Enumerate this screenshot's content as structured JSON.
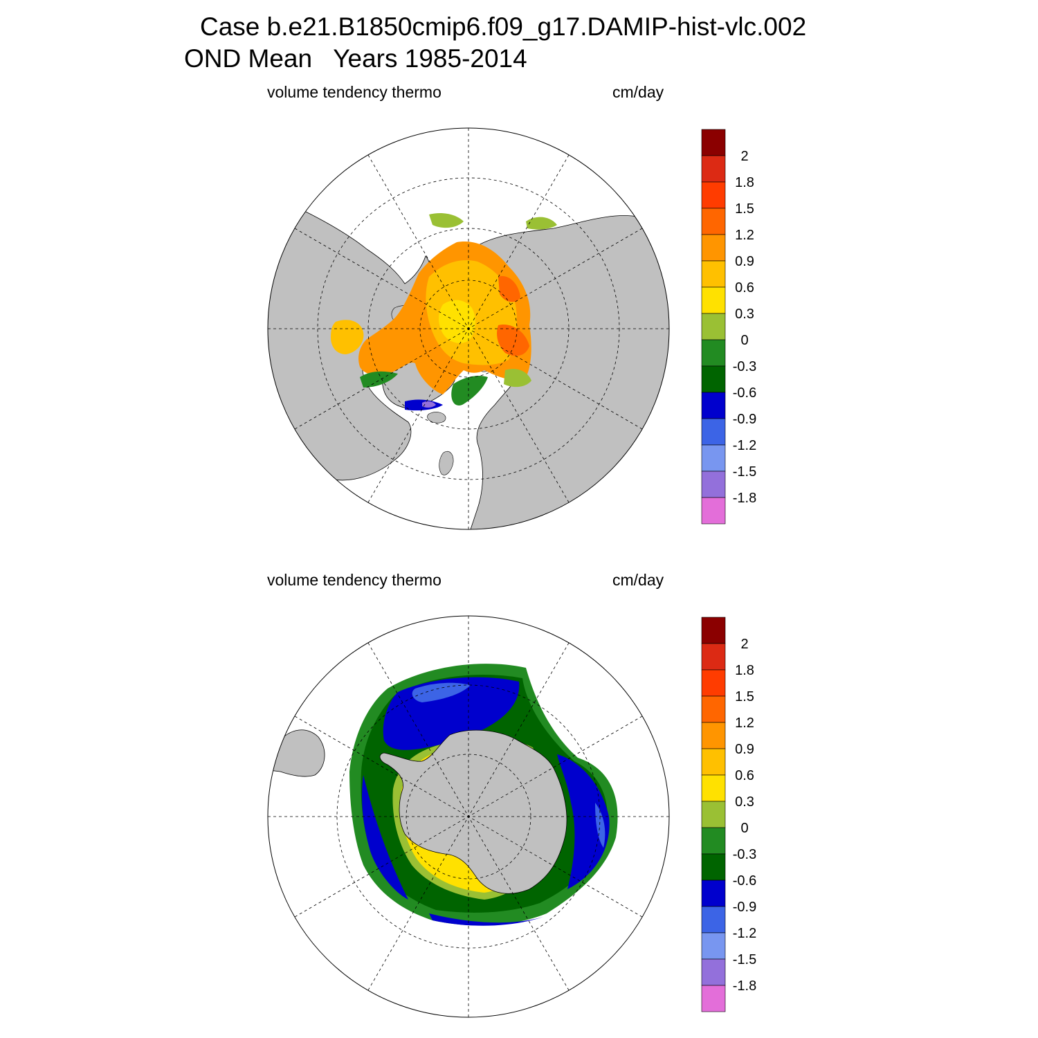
{
  "title": {
    "line1": "Case b.e21.B1850cmip6.f09_g17.DAMIP-hist-vlc.002",
    "line2": "OND Mean   Years 1985-2014"
  },
  "panels": [
    {
      "id": "north",
      "variable": "volume tendency thermo",
      "units": "cm/day"
    },
    {
      "id": "south",
      "variable": "volume tendency thermo",
      "units": "cm/day"
    }
  ],
  "colorbar": {
    "labels": [
      "2",
      "1.8",
      "1.5",
      "1.2",
      "0.9",
      "0.6",
      "0.3",
      "0",
      "-0.3",
      "-0.6",
      "-0.9",
      "-1.2",
      "-1.5",
      "-1.8"
    ],
    "colors": [
      "#8b0000",
      "#dc2a14",
      "#ff3c00",
      "#ff6600",
      "#ff9500",
      "#ffc000",
      "#ffe100",
      "#9ac034",
      "#228b22",
      "#006400",
      "#0000cd",
      "#3c64e6",
      "#7896f0",
      "#9370db",
      "#e36ed9"
    ]
  },
  "colors": {
    "land": "#c0c0c0",
    "ocean": "#ffffff"
  }
}
